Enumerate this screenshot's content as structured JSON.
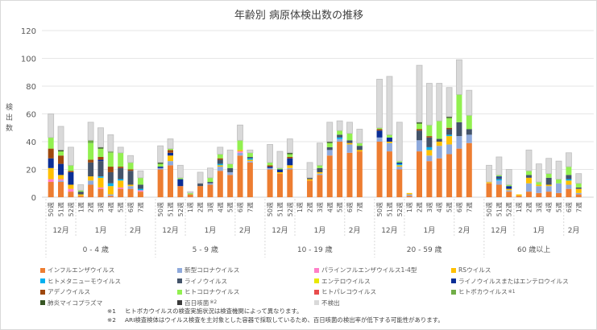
{
  "chart_data": {
    "type": "bar",
    "stacked": true,
    "title": "年齢別 病原体検出数の推移",
    "ylabel": "検出数",
    "ylim": [
      0,
      120
    ],
    "yticks": [
      0,
      20,
      40,
      60,
      80,
      100,
      120
    ],
    "grid": true,
    "legend_position": "bottom",
    "groups": [
      {
        "label": "0 - 4 歳"
      },
      {
        "label": "5 - 9 歳"
      },
      {
        "label": "10 - 19 歳"
      },
      {
        "label": "20 - 59 歳"
      },
      {
        "label": "60 歳以上"
      }
    ],
    "weeks": [
      "50週",
      "51週",
      "52週",
      "1週",
      "2週",
      "3週",
      "4週",
      "5週",
      "6週",
      "7週"
    ],
    "months": [
      {
        "label": "12月",
        "weeks": 3
      },
      {
        "label": "1月",
        "weeks": 5
      },
      {
        "label": "2月",
        "weeks": 2
      }
    ],
    "series": [
      {
        "name": "インフルエンザウイルス",
        "color": "#ED7D31",
        "values": [
          11,
          11,
          4,
          1,
          9,
          6,
          1,
          6,
          6,
          4,
          20,
          23,
          8,
          2,
          8,
          9,
          19,
          16,
          30,
          25,
          20,
          17,
          20,
          0,
          12,
          16,
          30,
          40,
          32,
          33,
          40,
          33,
          20,
          1,
          33,
          26,
          28,
          31,
          35,
          39,
          10,
          9,
          4,
          1,
          4,
          3,
          4,
          3,
          6,
          2
        ]
      },
      {
        "name": "新型コロナウイルス",
        "color": "#8FAADC",
        "values": [
          0,
          1,
          0,
          0,
          3,
          0,
          1,
          0,
          2,
          0,
          1,
          3,
          0,
          0,
          0,
          1,
          3,
          2,
          2,
          1,
          1,
          0,
          1,
          0,
          0,
          1,
          4,
          2,
          6,
          0,
          3,
          6,
          2,
          1,
          8,
          4,
          9,
          7,
          9,
          6,
          0,
          3,
          1,
          0,
          6,
          5,
          4,
          7,
          3,
          1
        ]
      },
      {
        "name": "パラインフルエンザウイルス1-4型",
        "color": "#FF7FC8",
        "values": [
          2,
          1,
          2,
          0,
          0,
          1,
          0,
          1,
          0,
          1,
          0,
          0,
          0,
          0,
          0,
          0,
          0,
          0,
          1,
          0,
          0,
          0,
          0,
          0,
          0,
          0,
          0,
          0,
          0,
          0,
          0,
          0,
          0,
          0,
          0,
          0,
          0,
          0,
          0,
          0,
          0,
          0,
          0,
          0,
          0,
          0,
          0,
          0,
          0,
          0
        ]
      },
      {
        "name": "RSウイルス",
        "color": "#FFC000",
        "values": [
          8,
          3,
          3,
          1,
          3,
          7,
          6,
          5,
          1,
          0,
          0,
          4,
          0,
          0,
          0,
          0,
          1,
          0,
          1,
          1,
          0,
          1,
          2,
          0,
          1,
          1,
          0,
          0,
          1,
          1,
          0,
          1,
          1,
          1,
          0,
          4,
          3,
          6,
          0,
          0,
          1,
          0,
          1,
          1,
          4,
          1,
          1,
          0,
          3,
          3
        ]
      },
      {
        "name": "ヒトメタニューモウイルス",
        "color": "#00B0F0",
        "values": [
          0,
          0,
          0,
          0,
          0,
          1,
          2,
          1,
          0,
          1,
          0,
          0,
          0,
          0,
          0,
          0,
          1,
          0,
          0,
          1,
          0,
          0,
          0,
          0,
          0,
          0,
          0,
          1,
          0,
          0,
          0,
          0,
          1,
          0,
          0,
          2,
          0,
          1,
          0,
          0,
          0,
          1,
          0,
          0,
          0,
          0,
          0,
          0,
          1,
          0
        ]
      },
      {
        "name": "ライノウイルス",
        "color": "#44546A",
        "values": [
          0,
          0,
          0,
          2,
          10,
          11,
          8,
          8,
          10,
          3,
          0,
          0,
          0,
          0,
          2,
          1,
          3,
          3,
          0,
          1,
          0,
          0,
          0,
          0,
          1,
          3,
          2,
          2,
          2,
          3,
          0,
          0,
          0,
          0,
          7,
          7,
          2,
          4,
          10,
          4,
          0,
          1,
          0,
          0,
          2,
          0,
          5,
          0,
          3,
          1
        ]
      },
      {
        "name": "エンテロウイルス",
        "color": "#E8E800",
        "values": [
          0,
          0,
          0,
          0,
          0,
          0,
          0,
          0,
          0,
          0,
          0,
          0,
          0,
          0,
          0,
          0,
          0,
          0,
          0,
          0,
          0,
          0,
          0,
          0,
          0,
          0,
          0,
          0,
          0,
          0,
          0,
          0,
          0,
          0,
          0,
          0,
          0,
          0,
          0,
          0,
          0,
          0,
          0,
          0,
          0,
          0,
          0,
          0,
          0,
          0
        ]
      },
      {
        "name": "ライノウイルスまたはエンテロウイルス",
        "color": "#0A2E96",
        "values": [
          7,
          8,
          9,
          0,
          0,
          1,
          0,
          0,
          0,
          0,
          1,
          2,
          5,
          0,
          0,
          0,
          0,
          0,
          0,
          0,
          1,
          2,
          5,
          0,
          0,
          0,
          0,
          0,
          0,
          0,
          5,
          3,
          1,
          0,
          0,
          0,
          0,
          0,
          0,
          0,
          0,
          1,
          2,
          0,
          0,
          0,
          0,
          0,
          0,
          0
        ]
      },
      {
        "name": "アデノウイルス",
        "color": "#9E480E",
        "values": [
          7,
          6,
          1,
          0,
          2,
          2,
          4,
          1,
          1,
          0,
          0,
          2,
          0,
          0,
          0,
          0,
          1,
          0,
          0,
          0,
          1,
          0,
          1,
          0,
          0,
          0,
          0,
          0,
          0,
          0,
          1,
          0,
          0,
          0,
          1,
          1,
          0,
          1,
          0,
          0,
          0,
          0,
          0,
          0,
          0,
          0,
          0,
          0,
          0,
          0
        ]
      },
      {
        "name": "ヒトコロナウイルス",
        "color": "#92F050",
        "values": [
          8,
          3,
          4,
          1,
          12,
          6,
          10,
          10,
          5,
          5,
          2,
          1,
          1,
          1,
          0,
          3,
          3,
          3,
          7,
          3,
          2,
          1,
          2,
          0,
          0,
          2,
          3,
          3,
          5,
          2,
          1,
          2,
          1,
          0,
          4,
          8,
          13,
          7,
          20,
          10,
          0,
          1,
          1,
          0,
          3,
          2,
          3,
          3,
          6,
          3
        ]
      },
      {
        "name": "ヒトパレコウイルス",
        "color": "#E84C4C",
        "values": [
          0,
          0,
          0,
          0,
          0,
          0,
          0,
          0,
          0,
          0,
          0,
          0,
          0,
          0,
          0,
          0,
          0,
          0,
          0,
          0,
          0,
          0,
          0,
          0,
          0,
          0,
          0,
          0,
          0,
          0,
          0,
          0,
          0,
          0,
          0,
          0,
          0,
          0,
          0,
          0,
          0,
          0,
          0,
          0,
          0,
          0,
          0,
          0,
          0,
          0
        ]
      },
      {
        "name": "ヒトボカウイルス",
        "note": "※1",
        "color": "#70AD47",
        "values": [
          0,
          0,
          0,
          0,
          2,
          0,
          1,
          0,
          0,
          0,
          0,
          0,
          0,
          0,
          0,
          0,
          0,
          0,
          0,
          0,
          0,
          0,
          0,
          0,
          0,
          0,
          0,
          0,
          0,
          0,
          0,
          0,
          0,
          0,
          0,
          0,
          0,
          0,
          0,
          0,
          0,
          0,
          0,
          0,
          0,
          0,
          0,
          0,
          0,
          0
        ]
      },
      {
        "name": "肺炎マイコプラズマ",
        "color": "#375623",
        "values": [
          0,
          1,
          0,
          0,
          0,
          1,
          0,
          0,
          0,
          0,
          1,
          0,
          0,
          0,
          0,
          0,
          0,
          0,
          0,
          0,
          0,
          0,
          1,
          0,
          0,
          0,
          1,
          0,
          0,
          0,
          0,
          0,
          0,
          0,
          1,
          0,
          0,
          1,
          0,
          0,
          0,
          0,
          0,
          0,
          0,
          0,
          0,
          0,
          0,
          0
        ]
      },
      {
        "name": "百日咳菌",
        "note": "※2",
        "color": "#3A3A3A",
        "values": [
          0,
          0,
          0,
          0,
          0,
          0,
          0,
          0,
          0,
          0,
          0,
          0,
          0,
          0,
          0,
          0,
          0,
          0,
          0,
          0,
          0,
          0,
          0,
          0,
          0,
          0,
          0,
          0,
          0,
          0,
          0,
          0,
          0,
          0,
          0,
          0,
          0,
          0,
          0,
          0,
          0,
          0,
          0,
          0,
          0,
          0,
          0,
          0,
          0,
          0
        ]
      },
      {
        "name": "不検出",
        "color": "#D9D9D9",
        "values": [
          17,
          17,
          13,
          4,
          13,
          14,
          12,
          4,
          5,
          5,
          12,
          7,
          9,
          1,
          8,
          7,
          5,
          10,
          11,
          2,
          13,
          12,
          10,
          0,
          11,
          16,
          14,
          7,
          8,
          10,
          35,
          42,
          28,
          0,
          41,
          30,
          27,
          21,
          25,
          18,
          12,
          13,
          11,
          0,
          15,
          13,
          11,
          13,
          10,
          7
        ]
      }
    ]
  },
  "notes": [
    {
      "mark": "※1",
      "text": "ヒトボカウイルスの検査実施状況は検査機関によって異なります。"
    },
    {
      "mark": "※2",
      "text": "ARI検査検体はウイルス検査を主対象とした容器で採取しているため、百日咳菌の検出率が低下する可能性があります。"
    }
  ]
}
